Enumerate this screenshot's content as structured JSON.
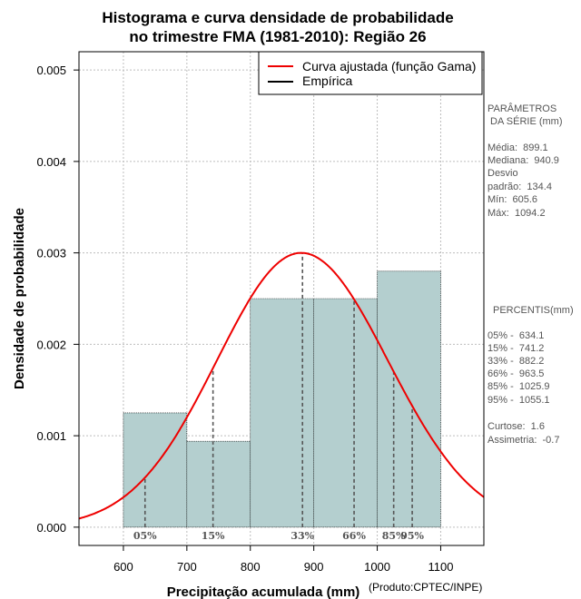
{
  "title": {
    "line1": "Histograma e curva densidade de probabilidade",
    "line2": "no trimestre FMA (1981-2010): Região 26"
  },
  "chart_data": {
    "type": "bar",
    "title": "Histograma e curva densidade de probabilidade no trimestre FMA (1981-2010): Região 26",
    "xlabel": "Precipitação acumulada (mm)",
    "ylabel": "Densidade de probabilidade",
    "xlim": [
      530,
      1168
    ],
    "ylim": [
      -0.0002,
      0.0052
    ],
    "xticks": [
      600,
      700,
      800,
      900,
      1000,
      1100
    ],
    "yticks": [
      0.0,
      0.001,
      0.002,
      0.003,
      0.004,
      0.005
    ],
    "ytick_labels": [
      "0.000",
      "0.001",
      "0.002",
      "0.003",
      "0.004",
      "0.005"
    ],
    "grid": true,
    "bins": [
      {
        "x0": 600,
        "x1": 700,
        "density": 0.00125
      },
      {
        "x0": 700,
        "x1": 800,
        "density": 0.00094
      },
      {
        "x0": 800,
        "x1": 900,
        "density": 0.0025
      },
      {
        "x0": 900,
        "x1": 1000,
        "density": 0.0025
      },
      {
        "x0": 1000,
        "x1": 1100,
        "density": 0.0028
      }
    ],
    "fitted_curve": {
      "name": "Curva ajustada (função Gama)",
      "peak_x": 880,
      "peak_density": 0.003,
      "sd_left": 133,
      "sd_right": 137
    },
    "legend": {
      "position": "top-right",
      "entries": [
        {
          "label": "Curva ajustada (função Gama)",
          "color": "#ee0000"
        },
        {
          "label": "Empírica",
          "color": "#000000"
        }
      ]
    },
    "percentile_markers": [
      {
        "label": "05%",
        "value": 634.1
      },
      {
        "label": "15%",
        "value": 741.2
      },
      {
        "label": "33%",
        "value": 882.2
      },
      {
        "label": "66%",
        "value": 963.5
      },
      {
        "label": "85%",
        "value": 1025.9
      },
      {
        "label": "95%",
        "value": 1055.1
      }
    ]
  },
  "credit": "(Produto:CPTEC/INPE)",
  "side_panel": {
    "params_header_1": "PARÂMETROS",
    "params_header_2": " DA SÉRIE (mm)",
    "media": "Média:  899.1",
    "mediana": "Mediana:  940.9",
    "desvio_1": "Desvio",
    "desvio_2": "padrão:  134.4",
    "min": "Mín:  605.6",
    "max": "Máx:  1094.2",
    "percentis_header": "PERCENTIS(mm)",
    "p05": "05% -  634.1",
    "p15": "15% -  741.2",
    "p33": "33% -  882.2",
    "p66": "66% -  963.5",
    "p85": "85% -  1025.9",
    "p95": "95% -  1055.1",
    "curtose": "Curtose:  1.6",
    "assimetria": "Assimetria:  -0.7"
  },
  "colors": {
    "bar_fill": "#b4cfcf",
    "curve": "#ee0000",
    "grid": "#bdbdbd",
    "marker_line": "#555555"
  }
}
